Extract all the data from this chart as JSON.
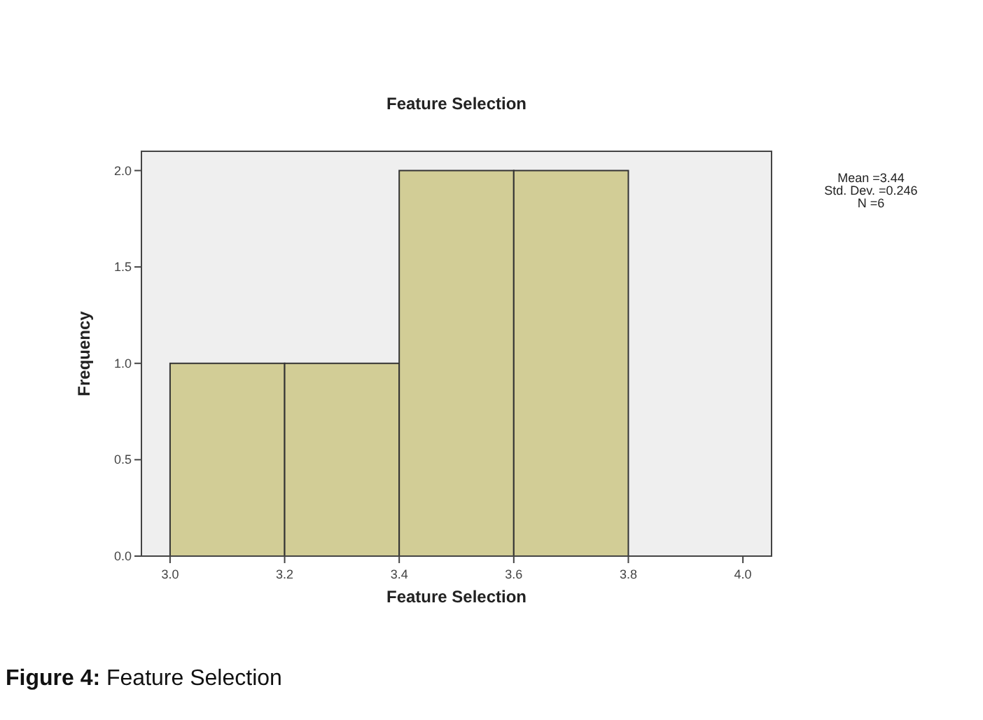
{
  "chart_data": {
    "type": "histogram",
    "title": "Feature Selection",
    "xlabel": "Feature Selection",
    "ylabel": "Frequency",
    "bins": [
      3.0,
      3.2,
      3.4,
      3.6,
      3.8
    ],
    "values": [
      1,
      1,
      2,
      2
    ],
    "color": "#d2cd96",
    "xlim": [
      2.95,
      4.05
    ],
    "xticks": [
      {
        "value": 3.0,
        "label": "3.0"
      },
      {
        "value": 3.2,
        "label": "3.2"
      },
      {
        "value": 3.4,
        "label": "3.4"
      },
      {
        "value": 3.6,
        "label": "3.6"
      },
      {
        "value": 3.8,
        "label": "3.8"
      },
      {
        "value": 4.0,
        "label": "4.0"
      }
    ],
    "ylim": [
      0,
      2.1
    ],
    "yticks": [
      {
        "value": 0,
        "label": "0.0"
      },
      {
        "value": 0.5,
        "label": "0.5"
      },
      {
        "value": 1,
        "label": "1.0"
      },
      {
        "value": 1.5,
        "label": "1.5"
      },
      {
        "value": 2,
        "label": "2.0"
      }
    ],
    "grid": false,
    "annotations": [
      "Mean =3.44",
      "Std. Dev. =0.246",
      "N =6",
      "Figure 4: Feature Selection"
    ]
  }
}
